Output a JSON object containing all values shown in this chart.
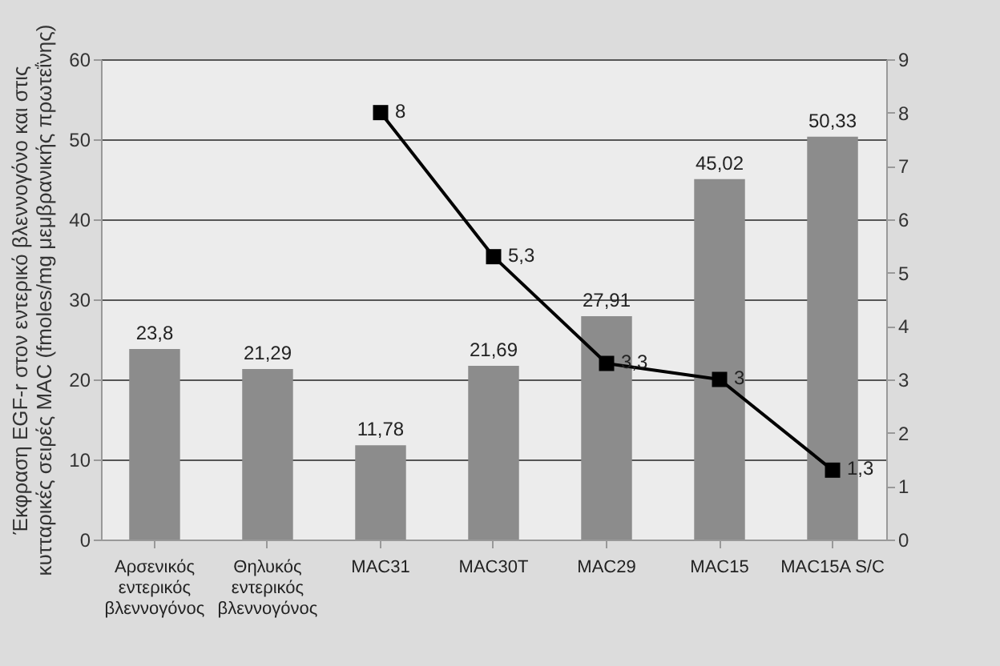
{
  "chart_data": {
    "type": "bar",
    "ylabel": "Έκφραση EGF-r στον εντερικό βλεννογόνο και στις κυτταρικές σειρές MAC (fmoles/mg μεμβρανικής πρωτεΐνης)",
    "categories": [
      "Αρσενικός εντερικός βλεννογόνος",
      "Θηλυκός εντερικός βλεννογόνος",
      "MAC31",
      "MAC30T",
      "MAC29",
      "MAC15",
      "MAC15A S/C"
    ],
    "series": [
      {
        "color": "#8c8c8c",
        "values": [
          23.8,
          21.29,
          11.78,
          21.69,
          27.91,
          45.02,
          50.33
        ],
        "value_labels": [
          "23,8",
          "21,29",
          "11,78",
          "21,69",
          "27,91",
          "45,02",
          "50,33"
        ]
      },
      {
        "type": "line",
        "axis": "y2",
        "color": "#000000",
        "marker": "square",
        "values": [
          null,
          null,
          8,
          5.3,
          3.3,
          3,
          1.3
        ],
        "value_labels": [
          null,
          null,
          "8",
          "5,3",
          "3,3",
          "3",
          "1,3"
        ]
      }
    ],
    "ylim": [
      0,
      60
    ],
    "yticks": [
      0,
      10,
      20,
      30,
      40,
      50,
      60
    ],
    "y2lim": [
      0,
      9
    ],
    "y2ticks": [
      0,
      1,
      2,
      3,
      4,
      5,
      6,
      7,
      8,
      9
    ],
    "grid": "y"
  }
}
